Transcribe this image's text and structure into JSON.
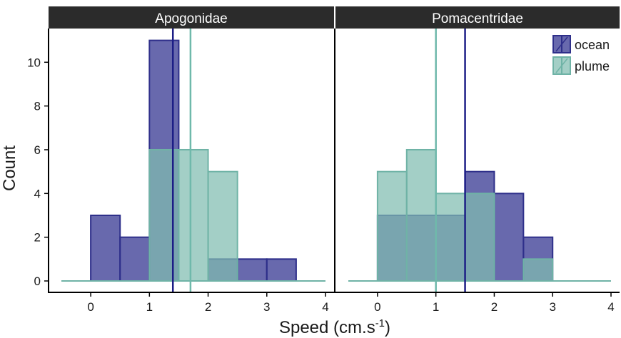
{
  "chart_data": {
    "type": "bar",
    "subtype": "faceted overlapping histogram",
    "xlabel": "Speed (cm.s",
    "xlabel_superscript": "-1",
    "xlabel_suffix": ")",
    "ylabel": "Count",
    "xlim": [
      -0.5,
      4
    ],
    "ylim": [
      0,
      11
    ],
    "x_ticks": [
      "0",
      "1",
      "2",
      "3",
      "4"
    ],
    "y_ticks": [
      "0",
      "2",
      "4",
      "6",
      "8",
      "10"
    ],
    "bin_width": 0.5,
    "bin_starts": [
      -0.5,
      0,
      0.5,
      1,
      1.5,
      2,
      2.5,
      3,
      3.5
    ],
    "legend_position": "top-right",
    "grid": false,
    "series_styles": [
      {
        "name": "ocean",
        "fill": "#3e3f96",
        "fill_opacity": 0.78,
        "stroke": "#2e2f8a"
      },
      {
        "name": "plume",
        "fill": "#7fbcb0",
        "fill_opacity": 0.72,
        "stroke": "#6fb3a6"
      }
    ],
    "panels": [
      {
        "title": "Apogonidae",
        "series": [
          {
            "name": "ocean",
            "counts": [
              0,
              3,
              2,
              11,
              0,
              1,
              1,
              1,
              0
            ],
            "mean": 1.4
          },
          {
            "name": "plume",
            "counts": [
              0,
              0,
              0,
              6,
              6,
              5,
              0,
              0,
              0
            ],
            "mean": 1.7
          }
        ]
      },
      {
        "title": "Pomacentridae",
        "series": [
          {
            "name": "ocean",
            "counts": [
              0,
              3,
              3,
              3,
              5,
              4,
              2,
              0,
              0
            ],
            "mean": 1.5
          },
          {
            "name": "plume",
            "counts": [
              0,
              5,
              6,
              4,
              4,
              0,
              1,
              0,
              0
            ],
            "mean": 1.0
          }
        ]
      }
    ]
  }
}
